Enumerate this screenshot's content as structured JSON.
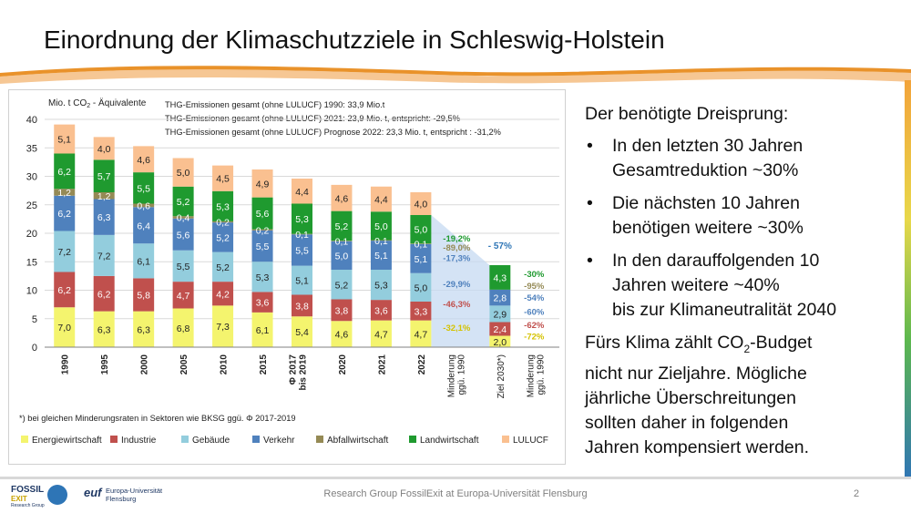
{
  "title": "Einordnung der Klimaschutzziele in Schleswig-Holstein",
  "footer": {
    "text": "Research Group FossilExit at Europa-Universität Flensburg",
    "page": "2"
  },
  "logos": {
    "fossil_line1": "FOSSIL",
    "fossil_line2": "EXIT",
    "fossil_line3": "Research Group",
    "uni_mark": "euf",
    "uni_line1": "Europa-Universität",
    "uni_line2": "Flensburg"
  },
  "text_panel": {
    "lead": "Der benötigte Dreisprung:",
    "bullets": [
      {
        "line1": "In den letzten 30 Jahren",
        "line2": "Gesamtreduktion ~30%"
      },
      {
        "line1": "Die nächsten 10 Jahren",
        "line2": "benötigen weitere ~30%"
      },
      {
        "line1": "In den darauffolgenden 10",
        "line2": "Jahren weitere ~40%",
        "line3": "bis zur Klimaneutralität 2040"
      }
    ],
    "closing_pre": "Fürs Klima zählt CO",
    "closing_sub": "2",
    "closing_post": "-Budget",
    "closing_rest": [
      "nicht nur Zieljahre. Mögliche",
      "jährliche Überschreitungen",
      "sollten daher in folgenden",
      "Jahren kompensiert werden."
    ]
  },
  "colors": {
    "Energiewirtschaft": "#f4f46e",
    "Industrie": "#c0504d",
    "Gebäude": "#93cddd",
    "Verkehr": "#4f81bd",
    "Abfallwirtschaft": "#958a55",
    "Landwirtschaft": "#1f9a2f",
    "LULUCF": "#fac090",
    "reduction_band": "#c5d9f1",
    "title_wave": "#e9922a",
    "wave_light": "#f6c794"
  },
  "chart_data": {
    "type": "bar",
    "stacked": true,
    "ylabel_pre": "Mio. t CO",
    "ylabel_sub": "2",
    "ylabel_post": " - Äquivalente",
    "ylim": [
      0,
      40
    ],
    "yticks": [
      "0",
      "5",
      "10",
      "15",
      "20",
      "25",
      "30",
      "35",
      "40"
    ],
    "grid": true,
    "legend_position": "bottom",
    "categories": [
      "1990",
      "1995",
      "2000",
      "2005",
      "2010",
      "2015",
      "Φ 2017 bis 2019",
      "2020",
      "2021",
      "2022",
      "Minderung ggü. 1990",
      "Ziel 2030*)",
      "Minderung ggü. 1990"
    ],
    "series": [
      {
        "name": "Energiewirtschaft",
        "values": [
          7.0,
          6.3,
          6.3,
          6.8,
          7.3,
          6.1,
          5.4,
          4.6,
          4.7,
          4.7,
          null,
          2.0,
          null
        ],
        "labels": [
          "7,0",
          "6,3",
          "6,3",
          "6,8",
          "7,3",
          "6,1",
          "5,4",
          "4,6",
          "4,7",
          "4,7",
          "",
          "2,0",
          ""
        ]
      },
      {
        "name": "Industrie",
        "values": [
          6.2,
          6.2,
          5.8,
          4.7,
          4.2,
          3.6,
          3.8,
          3.8,
          3.6,
          3.3,
          null,
          2.4,
          null
        ],
        "labels": [
          "6,2",
          "6,2",
          "5,8",
          "4,7",
          "4,2",
          "3,6",
          "3,8",
          "3,8",
          "3,6",
          "3,3",
          "",
          "2,4",
          ""
        ]
      },
      {
        "name": "Gebäude",
        "values": [
          7.2,
          7.2,
          6.1,
          5.5,
          5.2,
          5.3,
          5.1,
          5.2,
          5.3,
          5.0,
          null,
          2.9,
          null
        ],
        "labels": [
          "7,2",
          "7,2",
          "6,1",
          "5,5",
          "5,2",
          "5,3",
          "5,1",
          "5,2",
          "5,3",
          "5,0",
          "",
          "2,9",
          ""
        ]
      },
      {
        "name": "Verkehr",
        "values": [
          6.2,
          6.3,
          6.4,
          5.6,
          5.2,
          5.5,
          5.5,
          5.0,
          5.1,
          5.1,
          null,
          2.8,
          null
        ],
        "labels": [
          "6,2",
          "6,3",
          "6,4",
          "5,6",
          "5,2",
          "5,5",
          "5,5",
          "5,0",
          "5,1",
          "5,1",
          "",
          "2,8",
          ""
        ]
      },
      {
        "name": "Abfallwirtschaft",
        "values": [
          1.2,
          1.2,
          0.6,
          0.4,
          0.2,
          0.2,
          0.1,
          0.1,
          0.1,
          0.1,
          null,
          0.0,
          null
        ],
        "labels": [
          "1,2",
          "1,2",
          "0,6",
          "0,4",
          "0,2",
          "0,2",
          "0,1",
          "0,1",
          "0,1",
          "0,1",
          "",
          "",
          ""
        ]
      },
      {
        "name": "Landwirtschaft",
        "values": [
          6.2,
          5.7,
          5.5,
          5.2,
          5.3,
          5.6,
          5.3,
          5.2,
          5.0,
          5.0,
          null,
          4.3,
          null
        ],
        "labels": [
          "6,2",
          "5,7",
          "5,5",
          "5,2",
          "5,3",
          "5,6",
          "5,3",
          "5,2",
          "5,0",
          "5,0",
          "",
          "4,3",
          ""
        ]
      },
      {
        "name": "LULUCF",
        "values": [
          5.1,
          4.0,
          4.6,
          5.0,
          4.5,
          4.9,
          4.4,
          4.6,
          4.4,
          4.0,
          null,
          0.0,
          null
        ],
        "labels": [
          "5,1",
          "4,0",
          "4,6",
          "5,0",
          "4,5",
          "4,9",
          "4,4",
          "4,6",
          "4,4",
          "4,0",
          "",
          "",
          ""
        ]
      }
    ],
    "reduction_2022": [
      {
        "series": "Landwirtschaft",
        "label": "-19,2%"
      },
      {
        "series": "Abfallwirtschaft",
        "label": "-89,0%"
      },
      {
        "series": "Verkehr",
        "label": "-17,3%"
      },
      {
        "series": "Gebäude",
        "label": "-29,9%"
      },
      {
        "series": "Industrie",
        "label": "-46,3%"
      },
      {
        "series": "Energiewirtschaft",
        "label": "-32,1%"
      }
    ],
    "reduction_2030": [
      {
        "series": "Landwirtschaft",
        "label": "-30%"
      },
      {
        "series": "Abfallwirtschaft",
        "label": "-95%"
      },
      {
        "series": "Verkehr",
        "label": "-54%"
      },
      {
        "series": "Gebäude",
        "label": "-60%"
      },
      {
        "series": "Industrie",
        "label": "-62%"
      },
      {
        "series": "Energiewirtschaft",
        "label": "-72%"
      }
    ],
    "total_reduction_2030": "- 57%",
    "annotations": [
      "THG-Emissionen gesamt (ohne LULUCF) 1990: 33,9 Mio.t",
      "THG-Emissionen gesamt (ohne LULUCF) 2021: 23,9 Mio. t, entspricht: -29,5%",
      "THG-Emissionen gesamt (ohne LULUCF) Prognose 2022: 23,3 Mio. t, entspricht : -31,2%"
    ],
    "footnote": "*) bei gleichen Minderungsraten in Sektoren wie BKSG ggü.  Φ 2017-2019"
  }
}
